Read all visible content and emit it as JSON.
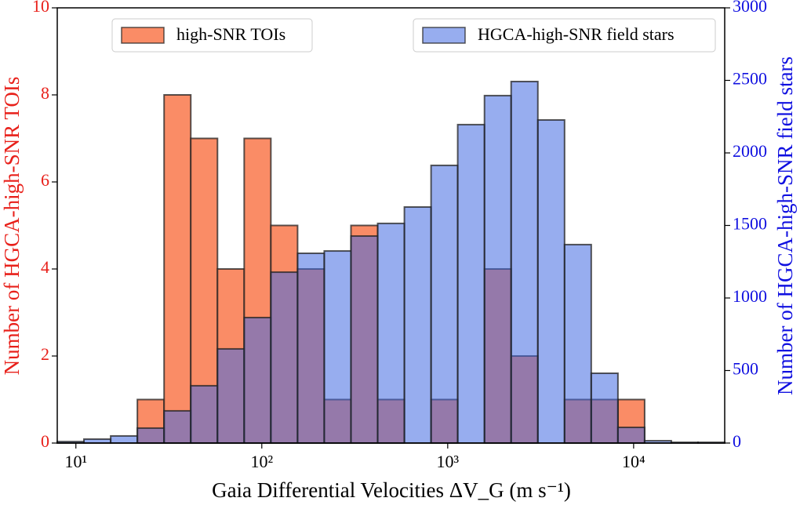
{
  "chart_data": {
    "type": "histogram",
    "x_label": "Gaia Differential Velocities ΔV_G (m s⁻¹)",
    "y_label": "Number of HGCA-high-SNR TOIs",
    "y2_label": "Number of HGCA-high-SNR field stars",
    "y_label_color": "#e8201a",
    "y2_label_color": "#1010e0",
    "xscale": "log",
    "bins": [
      7.94,
      11.05,
      15.39,
      21.42,
      29.82,
      41.5,
      57.77,
      80.42,
      111.9,
      155.8,
      216.8,
      301.8,
      420.1,
      584.8,
      813.9,
      1132,
      1577,
      2194,
      3054,
      4251,
      5916,
      8234,
      11460,
      15950,
      22200,
      30900
    ],
    "series": [
      {
        "name": "high-SNR TOIs",
        "color": "#fa7f55",
        "opacity": 0.9,
        "axis": "y",
        "legend": "upper left",
        "values": [
          0,
          0,
          0,
          1,
          8,
          7,
          4,
          7,
          5,
          4,
          1,
          5,
          1,
          0,
          1,
          0,
          4,
          2,
          0,
          1,
          1,
          1,
          0,
          0,
          0
        ]
      },
      {
        "name": "HGCA-high-SNR field stars",
        "color": "#4169e1",
        "opacity": 0.55,
        "axis": "y2",
        "legend": "upper right",
        "values": [
          10,
          27,
          49,
          103,
          222,
          395,
          649,
          865,
          1178,
          1308,
          1324,
          1427,
          1514,
          1627,
          1914,
          2195,
          2395,
          2492,
          2227,
          1368,
          481,
          108,
          16,
          5,
          5
        ]
      }
    ],
    "xlim": [
      7.94,
      30900
    ],
    "xticks": [
      {
        "value": 10,
        "label": "10¹"
      },
      {
        "value": 100,
        "label": "10²"
      },
      {
        "value": 1000,
        "label": "10³"
      },
      {
        "value": 10000,
        "label": "10⁴"
      }
    ],
    "ylim": [
      0,
      10
    ],
    "yticks": [
      0,
      2,
      4,
      6,
      8,
      10
    ],
    "y2lim": [
      0,
      3000
    ],
    "y2ticks": [
      0,
      500,
      1000,
      1500,
      2000,
      2500,
      3000
    ]
  }
}
